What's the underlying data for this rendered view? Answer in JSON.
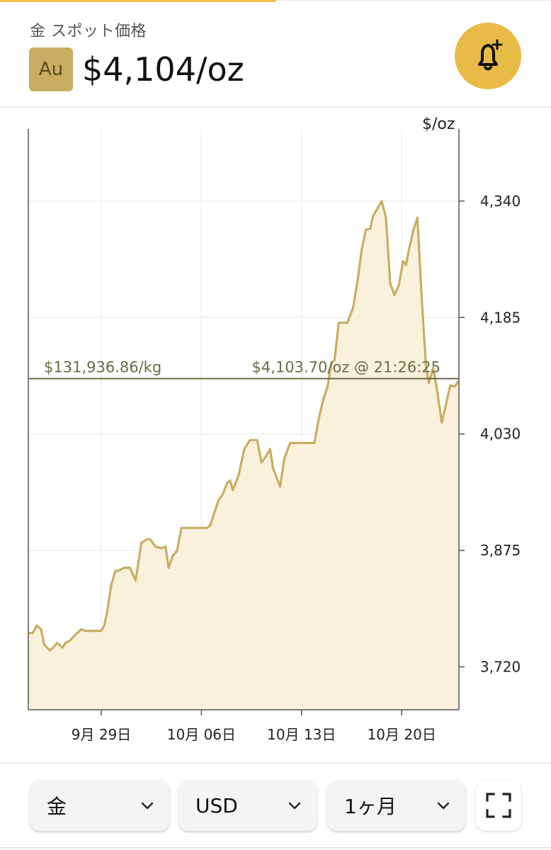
{
  "header": {
    "subtitle": "金 スポット価格",
    "symbol": "Au",
    "price": "$4,104/oz",
    "alert_icon": "bell-plus-icon"
  },
  "chart_data": {
    "type": "area",
    "ylabel": "$/oz",
    "y_ticks": [
      3720,
      3875,
      4030,
      4185,
      4340
    ],
    "y_tick_labels": [
      "3,720",
      "3,875",
      "4,030",
      "4,185",
      "4,340"
    ],
    "ylim": [
      3663,
      4436
    ],
    "x_ticks": [
      "9月 29日",
      "10月 06日",
      "10月 13日",
      "10月 20日"
    ],
    "x_tick_days": [
      29,
      36,
      43,
      50
    ],
    "xlim": [
      23.9,
      54
    ],
    "grid": true,
    "colors": {
      "line": "#c8ad63",
      "fill": "#faf1dd",
      "ref": "#6b6b45"
    },
    "reference": {
      "value": 4103.7,
      "left_label": "$131,936.86/kg",
      "right_label": "$4,103.70/oz @ 21:26:25"
    },
    "series": [
      {
        "x": [
          23.9,
          24.2,
          24.5,
          24.8,
          25.0,
          25.4,
          25.6,
          25.9,
          26.3,
          26.5,
          26.8,
          27.3,
          27.6,
          27.9,
          28.5,
          29.0,
          29.2,
          29.4,
          29.7,
          30.0,
          30.2,
          30.6,
          31.0,
          31.4,
          31.8,
          32.2,
          32.4,
          32.8,
          33.2,
          33.5,
          33.7,
          34.0,
          34.3,
          34.6,
          34.9,
          35.2,
          35.6,
          35.9,
          36.2,
          36.4,
          36.6,
          36.9,
          37.2,
          37.5,
          37.8,
          38.0,
          38.2,
          38.6,
          39.0,
          39.4,
          39.6,
          39.9,
          40.2,
          40.5,
          40.8,
          41.0,
          41.2,
          41.5,
          41.8,
          42.2,
          42.6,
          43.0,
          43.3,
          43.6,
          43.9,
          44.2,
          44.5,
          44.8,
          45.1,
          45.3,
          45.6,
          45.9,
          46.2,
          46.4,
          46.6,
          46.9,
          47.2,
          47.5,
          47.8,
          48.0,
          48.3,
          48.6,
          48.9,
          49.2,
          49.5,
          49.8,
          50.1,
          50.3,
          50.5,
          50.8,
          51.1,
          51.4,
          51.7,
          51.9,
          52.2,
          52.5,
          52.8,
          53.1,
          53.4,
          53.7,
          54.0
        ],
        "values": [
          3765,
          3765,
          3775,
          3770,
          3750,
          3742,
          3745,
          3752,
          3746,
          3752,
          3755,
          3765,
          3770,
          3768,
          3768,
          3768,
          3775,
          3792,
          3830,
          3848,
          3848,
          3852,
          3852,
          3835,
          3885,
          3890,
          3890,
          3880,
          3878,
          3880,
          3852,
          3868,
          3875,
          3905,
          3905,
          3905,
          3905,
          3905,
          3905,
          3905,
          3908,
          3925,
          3942,
          3950,
          3965,
          3968,
          3955,
          3975,
          4010,
          4022,
          4022,
          4022,
          3992,
          4000,
          4010,
          3985,
          3975,
          3960,
          3998,
          4018,
          4018,
          4018,
          4018,
          4018,
          4018,
          4050,
          4075,
          4092,
          4125,
          4128,
          4178,
          4178,
          4178,
          4188,
          4198,
          4232,
          4275,
          4302,
          4303,
          4320,
          4330,
          4340,
          4318,
          4230,
          4215,
          4228,
          4260,
          4255,
          4275,
          4300,
          4318,
          4210,
          4120,
          4098,
          4118,
          4085,
          4045,
          4070,
          4095,
          4093,
          4101
        ]
      }
    ]
  },
  "controls": {
    "metal": {
      "label": "金",
      "icon": "chevron-down-icon"
    },
    "currency": {
      "label": "USD",
      "icon": "chevron-down-icon"
    },
    "range": {
      "label": "1ヶ月",
      "icon": "chevron-down-icon"
    },
    "fullscreen_icon": "fullscreen-icon"
  }
}
